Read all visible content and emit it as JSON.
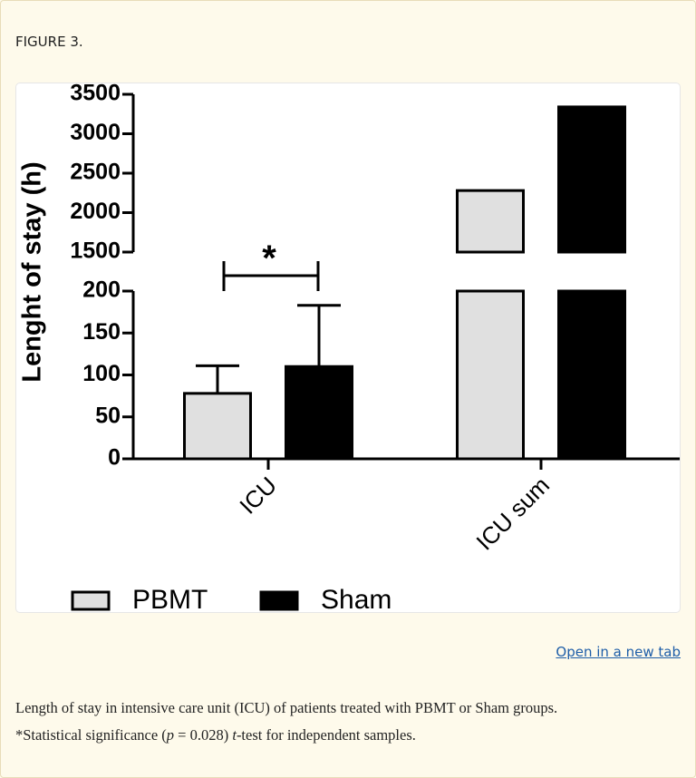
{
  "header": {
    "title": "FIGURE 3."
  },
  "chart_data": {
    "type": "bar",
    "y_label": "Lenght of stay (h)",
    "categories": [
      "ICU",
      "ICU sum"
    ],
    "series": [
      {
        "name": "PBMT",
        "color": "#e0e0e0",
        "values": [
          78,
          2280
        ],
        "errors": [
          33,
          null
        ]
      },
      {
        "name": "Sham",
        "color": "#000000",
        "values": [
          110,
          3340
        ],
        "errors": [
          73,
          null
        ]
      }
    ],
    "ylim": [
      0,
      3500
    ],
    "ybreak": [
      200,
      1500
    ],
    "yticks": [
      0,
      50,
      100,
      150,
      200,
      1500,
      2000,
      2500,
      3000,
      3500
    ],
    "annotation": "*"
  },
  "link": "Open in a new tab",
  "caption": {
    "line1": "Length of stay in intensive care unit (ICU) of patients treated with PBMT or Sham groups.",
    "line2": [
      "*Statistical significance (",
      "p",
      " = 0.028) ",
      "t",
      "-test for independent samples."
    ]
  }
}
